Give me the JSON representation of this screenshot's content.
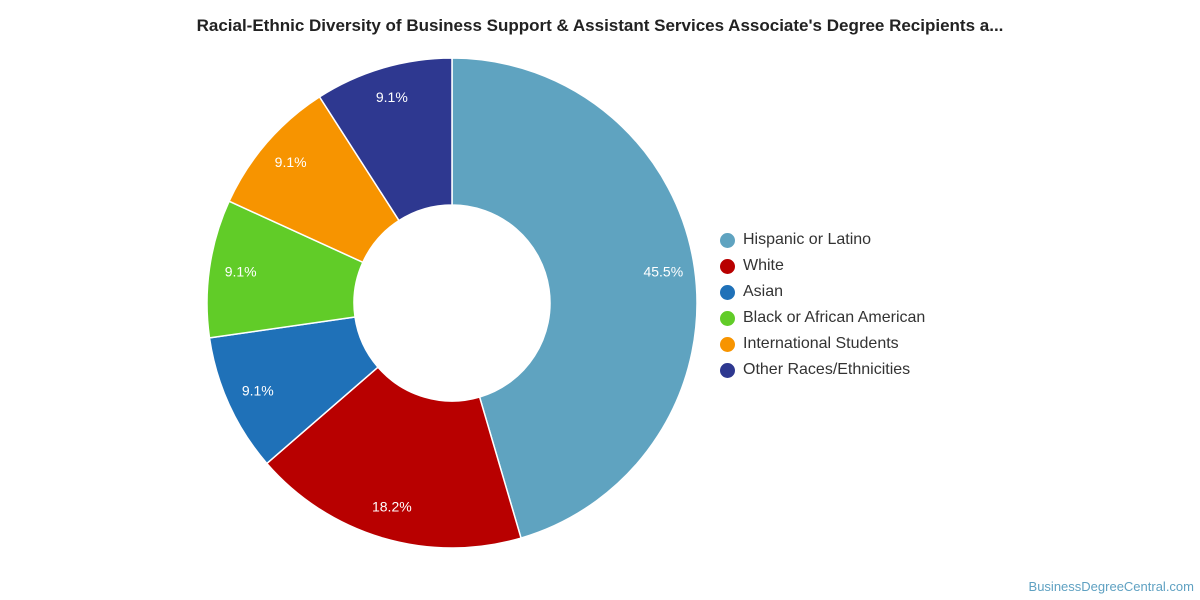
{
  "chart_data": {
    "type": "pie",
    "donut": true,
    "title": "Racial-Ethnic Diversity of Business Support & Assistant Services Associate's Degree Recipients a...",
    "legend_position": "right",
    "slices": [
      {
        "label": "Hispanic or Latino",
        "value": 45.5,
        "display": "45.5%",
        "color": "#5fa3c0"
      },
      {
        "label": "White",
        "value": 18.2,
        "display": "18.2%",
        "color": "#b80000"
      },
      {
        "label": "Asian",
        "value": 9.1,
        "display": "9.1%",
        "color": "#1f71b8"
      },
      {
        "label": "Black or African American",
        "value": 9.1,
        "display": "9.1%",
        "color": "#61cc28"
      },
      {
        "label": "International Students",
        "value": 9.1,
        "display": "9.1%",
        "color": "#f79400"
      },
      {
        "label": "Other Races/Ethnicities",
        "value": 9.1,
        "display": "9.1%",
        "color": "#2e3890"
      }
    ]
  },
  "footer": {
    "credit": "BusinessDegreeCentral.com"
  }
}
